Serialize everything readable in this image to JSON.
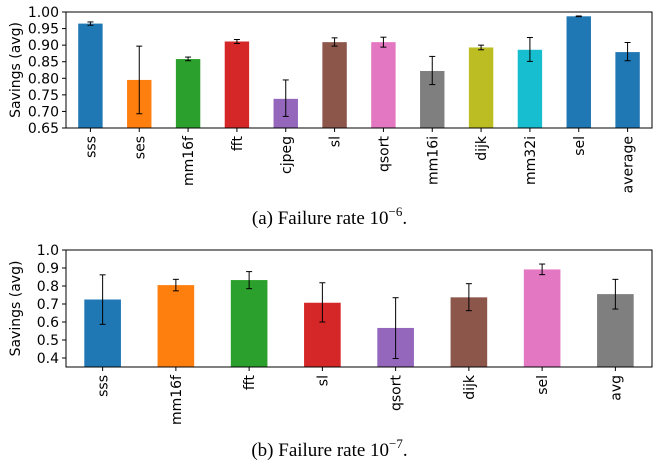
{
  "chart_data": [
    {
      "type": "bar",
      "ylabel": "Savings (avg)",
      "ylim": [
        0.65,
        1.0
      ],
      "yticks": [
        0.65,
        0.7,
        0.75,
        0.8,
        0.85,
        0.9,
        0.95,
        1.0
      ],
      "ytick_labels": [
        "0.65",
        "0.70",
        "0.75",
        "0.80",
        "0.85",
        "0.90",
        "0.95",
        "1.00"
      ],
      "categories": [
        "sss",
        "ses",
        "mm16f",
        "fft",
        "cjpeg",
        "sl",
        "qsort",
        "mm16i",
        "dijk",
        "mm32i",
        "sel",
        "average"
      ],
      "values": [
        0.965,
        0.795,
        0.858,
        0.911,
        0.738,
        0.909,
        0.909,
        0.822,
        0.893,
        0.886,
        0.987,
        0.879
      ],
      "error_low": [
        0.96,
        0.693,
        0.853,
        0.905,
        0.685,
        0.897,
        0.894,
        0.781,
        0.886,
        0.851,
        0.986,
        0.853
      ],
      "error_high": [
        0.97,
        0.897,
        0.864,
        0.917,
        0.795,
        0.922,
        0.924,
        0.866,
        0.9,
        0.923,
        0.988,
        0.908
      ],
      "colors": [
        "#1f77b4",
        "#ff7f0e",
        "#2ca02c",
        "#d62728",
        "#9467bd",
        "#8c564b",
        "#e377c2",
        "#7f7f7f",
        "#bcbd22",
        "#17becf",
        "#1f77b4",
        "#1f77b4"
      ],
      "caption": {
        "prefix": "(a) Failure rate 10",
        "exponent": "−6",
        "suffix": "."
      }
    },
    {
      "type": "bar",
      "ylabel": "Savings (avg)",
      "ylim": [
        0.35,
        1.0
      ],
      "yticks": [
        0.4,
        0.5,
        0.6,
        0.7,
        0.8,
        0.9,
        1.0
      ],
      "ytick_labels": [
        "0.4",
        "0.5",
        "0.6",
        "0.7",
        "0.8",
        "0.9",
        "1.0"
      ],
      "categories": [
        "sss",
        "mm16f",
        "fft",
        "sl",
        "qsort",
        "dijk",
        "sel",
        "avg"
      ],
      "values": [
        0.725,
        0.805,
        0.833,
        0.707,
        0.567,
        0.737,
        0.892,
        0.755
      ],
      "error_low": [
        0.587,
        0.773,
        0.785,
        0.6,
        0.397,
        0.663,
        0.863,
        0.672
      ],
      "error_high": [
        0.862,
        0.837,
        0.88,
        0.818,
        0.735,
        0.813,
        0.922,
        0.837
      ],
      "colors": [
        "#1f77b4",
        "#ff7f0e",
        "#2ca02c",
        "#d62728",
        "#9467bd",
        "#8c564b",
        "#e377c2",
        "#7f7f7f"
      ],
      "caption": {
        "prefix": "(b) Failure rate 10",
        "exponent": "−7",
        "suffix": "."
      }
    }
  ]
}
